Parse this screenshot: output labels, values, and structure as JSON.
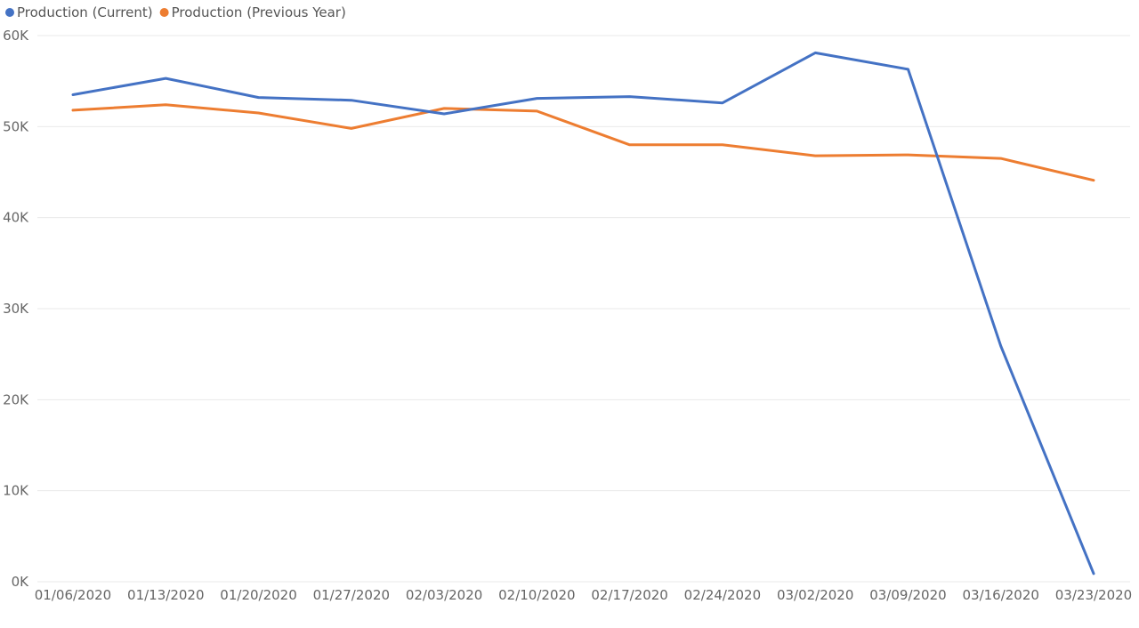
{
  "chart_data": {
    "type": "line",
    "categories": [
      "01/06/2020",
      "01/13/2020",
      "01/20/2020",
      "01/27/2020",
      "02/03/2020",
      "02/10/2020",
      "02/17/2020",
      "02/24/2020",
      "03/02/2020",
      "03/09/2020",
      "03/16/2020",
      "03/23/2020"
    ],
    "series": [
      {
        "name": "Production (Current)",
        "color": "#4472c4",
        "values": [
          53500,
          55300,
          53200,
          52900,
          51400,
          53100,
          53300,
          52600,
          58100,
          56300,
          25900,
          900
        ]
      },
      {
        "name": "Production (Previous Year)",
        "color": "#ed7d31",
        "values": [
          51800,
          52400,
          51500,
          49800,
          52000,
          51700,
          48000,
          48000,
          46800,
          46900,
          46500,
          44100
        ]
      }
    ],
    "y_ticks": [
      "0K",
      "10K",
      "20K",
      "30K",
      "40K",
      "50K",
      "60K"
    ],
    "y_tick_values": [
      0,
      10000,
      20000,
      30000,
      40000,
      50000,
      60000
    ],
    "ylim": [
      0,
      60000
    ],
    "grid": true,
    "legend_position": "top-left"
  }
}
